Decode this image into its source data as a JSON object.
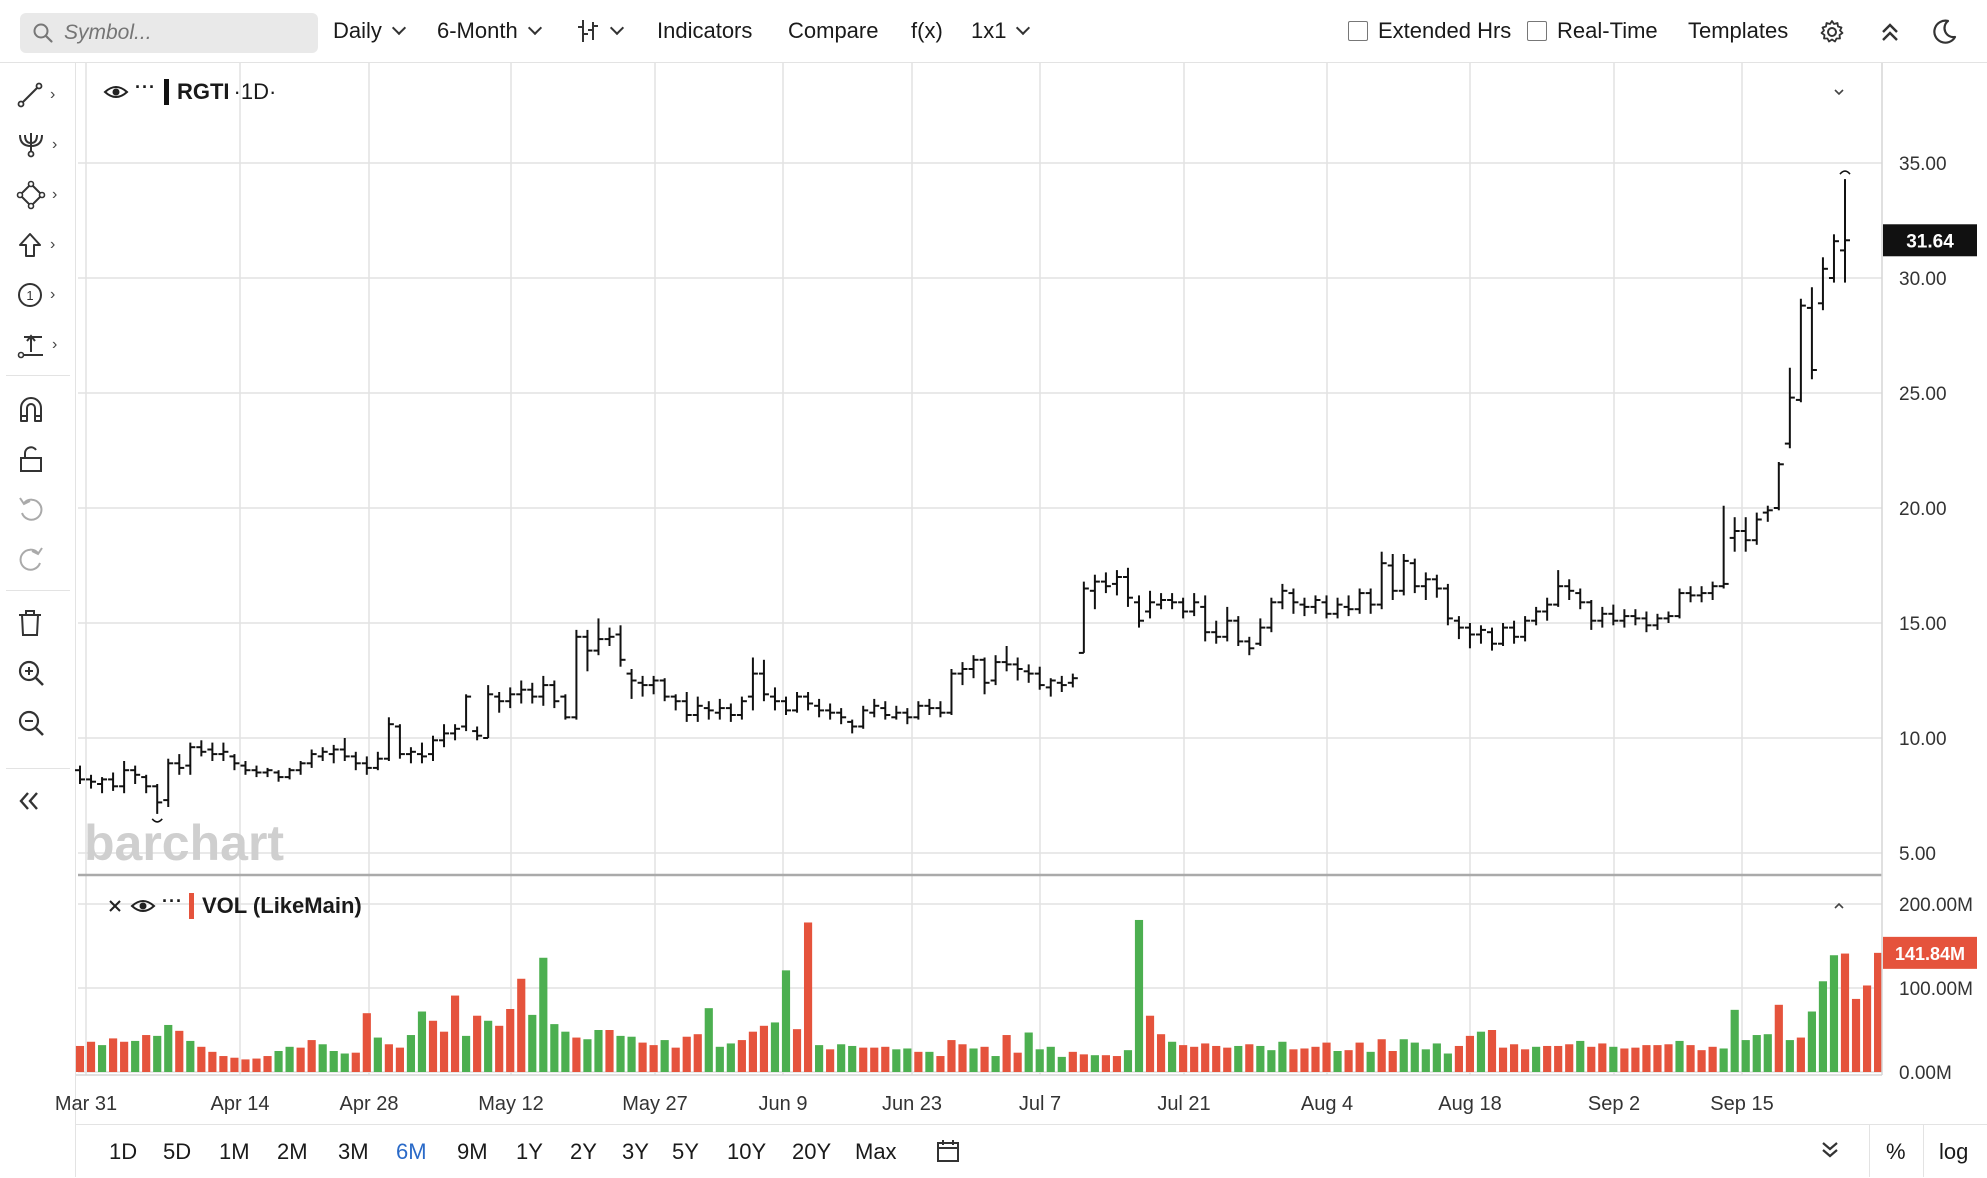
{
  "toolbar": {
    "search_placeholder": "Symbol...",
    "interval": "Daily",
    "period": "6-Month",
    "indicators": "Indicators",
    "compare": "Compare",
    "fx": "f(x)",
    "layout": "1x1",
    "extended_hrs": "Extended Hrs",
    "real_time": "Real-Time",
    "templates": "Templates"
  },
  "legend": {
    "symbol": "RGTI",
    "interval": "·1D·",
    "volume_label": "VOL (LikeMain)"
  },
  "watermark": "barchart",
  "range_buttons": [
    "1D",
    "5D",
    "1M",
    "2M",
    "3M",
    "6M",
    "9M",
    "1Y",
    "2Y",
    "3Y",
    "5Y",
    "10Y",
    "20Y",
    "Max"
  ],
  "active_range": "6M",
  "bottom_right": {
    "percent": "%",
    "log": "log"
  },
  "colors": {
    "up": "#4caf50",
    "down": "#e5533c",
    "price_tag": "#111111",
    "active": "#2a6ac8"
  },
  "chart_data": {
    "type": "ohlc",
    "symbol": "RGTI",
    "x_tick_labels": [
      "Mar 31",
      "Apr 14",
      "Apr 28",
      "May 12",
      "May 27",
      "Jun 9",
      "Jun 23",
      "Jul 7",
      "Jul 21",
      "Aug 4",
      "Aug 18",
      "Sep 2",
      "Sep 15"
    ],
    "y_tick_labels": [
      "5.00",
      "10.00",
      "15.00",
      "20.00",
      "25.00",
      "30.00",
      "35.00"
    ],
    "ylim": [
      5,
      35
    ],
    "last_price": "31.64",
    "ohlc": [
      {
        "o": 8.6,
        "h": 8.8,
        "l": 8.0,
        "c": 8.2
      },
      {
        "o": 8.2,
        "h": 8.4,
        "l": 7.8,
        "c": 8.1
      },
      {
        "o": 8.0,
        "h": 8.3,
        "l": 7.6,
        "c": 8.2
      },
      {
        "o": 8.2,
        "h": 8.5,
        "l": 7.7,
        "c": 7.9
      },
      {
        "o": 7.9,
        "h": 9.0,
        "l": 7.6,
        "c": 8.6
      },
      {
        "o": 8.6,
        "h": 8.8,
        "l": 8.0,
        "c": 8.4
      },
      {
        "o": 8.3,
        "h": 8.4,
        "l": 7.6,
        "c": 7.9
      },
      {
        "o": 7.9,
        "h": 8.0,
        "l": 6.7,
        "c": 7.2
      },
      {
        "o": 7.3,
        "h": 9.1,
        "l": 7.0,
        "c": 8.9
      },
      {
        "o": 8.9,
        "h": 9.3,
        "l": 8.4,
        "c": 8.7
      },
      {
        "o": 8.8,
        "h": 9.8,
        "l": 8.4,
        "c": 9.6
      },
      {
        "o": 9.6,
        "h": 9.9,
        "l": 9.2,
        "c": 9.4
      },
      {
        "o": 9.5,
        "h": 9.8,
        "l": 9.0,
        "c": 9.3
      },
      {
        "o": 9.3,
        "h": 9.8,
        "l": 9.0,
        "c": 9.4
      },
      {
        "o": 9.2,
        "h": 9.3,
        "l": 8.6,
        "c": 8.9
      },
      {
        "o": 8.8,
        "h": 9.0,
        "l": 8.4,
        "c": 8.6
      },
      {
        "o": 8.6,
        "h": 8.8,
        "l": 8.3,
        "c": 8.5
      },
      {
        "o": 8.5,
        "h": 8.7,
        "l": 8.3,
        "c": 8.6
      },
      {
        "o": 8.5,
        "h": 8.6,
        "l": 8.1,
        "c": 8.3
      },
      {
        "o": 8.3,
        "h": 8.7,
        "l": 8.2,
        "c": 8.6
      },
      {
        "o": 8.6,
        "h": 9.0,
        "l": 8.4,
        "c": 8.9
      },
      {
        "o": 8.9,
        "h": 9.5,
        "l": 8.7,
        "c": 9.3
      },
      {
        "o": 9.2,
        "h": 9.6,
        "l": 9.0,
        "c": 9.4
      },
      {
        "o": 9.3,
        "h": 9.7,
        "l": 8.9,
        "c": 9.5
      },
      {
        "o": 9.5,
        "h": 10.0,
        "l": 9.0,
        "c": 9.2
      },
      {
        "o": 9.2,
        "h": 9.4,
        "l": 8.6,
        "c": 8.9
      },
      {
        "o": 8.9,
        "h": 9.2,
        "l": 8.4,
        "c": 8.7
      },
      {
        "o": 8.7,
        "h": 9.4,
        "l": 8.6,
        "c": 9.1
      },
      {
        "o": 9.1,
        "h": 10.9,
        "l": 9.0,
        "c": 10.6
      },
      {
        "o": 10.5,
        "h": 10.6,
        "l": 9.1,
        "c": 9.3
      },
      {
        "o": 9.3,
        "h": 9.6,
        "l": 8.9,
        "c": 9.4
      },
      {
        "o": 9.3,
        "h": 9.8,
        "l": 8.9,
        "c": 9.2
      },
      {
        "o": 9.3,
        "h": 10.1,
        "l": 9.0,
        "c": 9.9
      },
      {
        "o": 9.9,
        "h": 10.6,
        "l": 9.6,
        "c": 10.2
      },
      {
        "o": 10.2,
        "h": 10.6,
        "l": 9.9,
        "c": 10.4
      },
      {
        "o": 10.5,
        "h": 11.9,
        "l": 10.3,
        "c": 11.8
      },
      {
        "o": 10.3,
        "h": 10.5,
        "l": 9.9,
        "c": 10.1
      },
      {
        "o": 10.0,
        "h": 12.3,
        "l": 10.0,
        "c": 11.9
      },
      {
        "o": 11.8,
        "h": 12.0,
        "l": 11.1,
        "c": 11.6
      },
      {
        "o": 11.6,
        "h": 12.2,
        "l": 11.3,
        "c": 11.9
      },
      {
        "o": 11.9,
        "h": 12.5,
        "l": 11.5,
        "c": 12.1
      },
      {
        "o": 12.1,
        "h": 12.4,
        "l": 11.5,
        "c": 11.8
      },
      {
        "o": 11.8,
        "h": 12.7,
        "l": 11.4,
        "c": 12.3
      },
      {
        "o": 12.3,
        "h": 12.5,
        "l": 11.3,
        "c": 11.6
      },
      {
        "o": 11.8,
        "h": 11.9,
        "l": 10.8,
        "c": 10.9
      },
      {
        "o": 10.9,
        "h": 14.7,
        "l": 10.8,
        "c": 14.4
      },
      {
        "o": 14.4,
        "h": 14.7,
        "l": 12.9,
        "c": 13.8
      },
      {
        "o": 13.8,
        "h": 15.2,
        "l": 13.6,
        "c": 14.3
      },
      {
        "o": 14.3,
        "h": 14.8,
        "l": 14.0,
        "c": 14.4
      },
      {
        "o": 14.5,
        "h": 14.9,
        "l": 13.1,
        "c": 13.4
      },
      {
        "o": 12.8,
        "h": 13.0,
        "l": 11.7,
        "c": 12.5
      },
      {
        "o": 12.4,
        "h": 12.7,
        "l": 11.8,
        "c": 12.3
      },
      {
        "o": 12.3,
        "h": 12.7,
        "l": 11.9,
        "c": 12.5
      },
      {
        "o": 12.5,
        "h": 12.6,
        "l": 11.6,
        "c": 11.8
      },
      {
        "o": 11.8,
        "h": 11.9,
        "l": 11.2,
        "c": 11.6
      },
      {
        "o": 11.6,
        "h": 12.0,
        "l": 10.7,
        "c": 11.0
      },
      {
        "o": 11.0,
        "h": 11.8,
        "l": 10.7,
        "c": 11.4
      },
      {
        "o": 11.3,
        "h": 11.6,
        "l": 10.8,
        "c": 11.2
      },
      {
        "o": 11.1,
        "h": 11.7,
        "l": 10.8,
        "c": 11.3
      },
      {
        "o": 11.3,
        "h": 11.5,
        "l": 10.7,
        "c": 11.0
      },
      {
        "o": 11.0,
        "h": 11.8,
        "l": 10.8,
        "c": 11.6
      },
      {
        "o": 11.8,
        "h": 13.5,
        "l": 11.2,
        "c": 12.8
      },
      {
        "o": 12.8,
        "h": 13.4,
        "l": 11.6,
        "c": 11.9
      },
      {
        "o": 11.8,
        "h": 12.2,
        "l": 11.2,
        "c": 11.6
      },
      {
        "o": 11.6,
        "h": 11.8,
        "l": 11.0,
        "c": 11.2
      },
      {
        "o": 11.2,
        "h": 12.0,
        "l": 11.1,
        "c": 11.8
      },
      {
        "o": 11.8,
        "h": 12.0,
        "l": 11.2,
        "c": 11.5
      },
      {
        "o": 11.4,
        "h": 11.7,
        "l": 10.9,
        "c": 11.2
      },
      {
        "o": 11.2,
        "h": 11.5,
        "l": 10.8,
        "c": 11.1
      },
      {
        "o": 11.1,
        "h": 11.3,
        "l": 10.6,
        "c": 10.9
      },
      {
        "o": 10.7,
        "h": 10.8,
        "l": 10.2,
        "c": 10.5
      },
      {
        "o": 10.5,
        "h": 11.4,
        "l": 10.4,
        "c": 11.2
      },
      {
        "o": 11.1,
        "h": 11.7,
        "l": 10.9,
        "c": 11.4
      },
      {
        "o": 11.3,
        "h": 11.6,
        "l": 10.8,
        "c": 11.0
      },
      {
        "o": 10.9,
        "h": 11.4,
        "l": 10.8,
        "c": 11.1
      },
      {
        "o": 11.1,
        "h": 11.3,
        "l": 10.6,
        "c": 10.9
      },
      {
        "o": 10.9,
        "h": 11.6,
        "l": 10.8,
        "c": 11.4
      },
      {
        "o": 11.4,
        "h": 11.7,
        "l": 11.0,
        "c": 11.3
      },
      {
        "o": 11.3,
        "h": 11.6,
        "l": 10.9,
        "c": 11.1
      },
      {
        "o": 11.1,
        "h": 13.0,
        "l": 11.0,
        "c": 12.8
      },
      {
        "o": 12.8,
        "h": 13.3,
        "l": 12.3,
        "c": 13.0
      },
      {
        "o": 13.0,
        "h": 13.6,
        "l": 12.6,
        "c": 13.4
      },
      {
        "o": 13.4,
        "h": 13.5,
        "l": 11.9,
        "c": 12.4
      },
      {
        "o": 12.5,
        "h": 13.6,
        "l": 12.3,
        "c": 13.3
      },
      {
        "o": 13.3,
        "h": 14.0,
        "l": 12.9,
        "c": 13.2
      },
      {
        "o": 13.2,
        "h": 13.5,
        "l": 12.5,
        "c": 13.0
      },
      {
        "o": 12.9,
        "h": 13.2,
        "l": 12.4,
        "c": 12.8
      },
      {
        "o": 12.8,
        "h": 13.1,
        "l": 12.1,
        "c": 12.3
      },
      {
        "o": 12.2,
        "h": 12.6,
        "l": 11.8,
        "c": 12.5
      },
      {
        "o": 12.4,
        "h": 12.7,
        "l": 12.0,
        "c": 12.3
      },
      {
        "o": 12.4,
        "h": 12.8,
        "l": 12.2,
        "c": 12.6
      },
      {
        "o": 13.7,
        "h": 16.8,
        "l": 13.7,
        "c": 16.5
      },
      {
        "o": 16.4,
        "h": 17.1,
        "l": 15.6,
        "c": 16.8
      },
      {
        "o": 16.8,
        "h": 17.2,
        "l": 16.3,
        "c": 16.6
      },
      {
        "o": 16.7,
        "h": 17.3,
        "l": 16.2,
        "c": 17.0
      },
      {
        "o": 17.0,
        "h": 17.4,
        "l": 15.7,
        "c": 16.1
      },
      {
        "o": 15.9,
        "h": 16.2,
        "l": 14.8,
        "c": 15.1
      },
      {
        "o": 15.5,
        "h": 16.4,
        "l": 15.2,
        "c": 15.9
      },
      {
        "o": 15.8,
        "h": 16.3,
        "l": 15.6,
        "c": 16.0
      },
      {
        "o": 16.0,
        "h": 16.3,
        "l": 15.6,
        "c": 15.9
      },
      {
        "o": 15.9,
        "h": 16.1,
        "l": 15.2,
        "c": 15.5
      },
      {
        "o": 15.5,
        "h": 16.3,
        "l": 15.3,
        "c": 15.9
      },
      {
        "o": 15.7,
        "h": 16.2,
        "l": 14.2,
        "c": 14.6
      },
      {
        "o": 14.6,
        "h": 15.1,
        "l": 14.1,
        "c": 14.4
      },
      {
        "o": 14.4,
        "h": 15.7,
        "l": 14.2,
        "c": 15.1
      },
      {
        "o": 15.1,
        "h": 15.3,
        "l": 14.0,
        "c": 14.2
      },
      {
        "o": 14.2,
        "h": 14.4,
        "l": 13.6,
        "c": 13.9
      },
      {
        "o": 14.1,
        "h": 15.2,
        "l": 14.0,
        "c": 14.8
      },
      {
        "o": 14.8,
        "h": 16.1,
        "l": 14.6,
        "c": 15.9
      },
      {
        "o": 15.9,
        "h": 16.7,
        "l": 15.6,
        "c": 16.4
      },
      {
        "o": 16.3,
        "h": 16.5,
        "l": 15.4,
        "c": 15.9
      },
      {
        "o": 15.8,
        "h": 16.1,
        "l": 15.3,
        "c": 15.7
      },
      {
        "o": 15.7,
        "h": 16.2,
        "l": 15.4,
        "c": 16.0
      },
      {
        "o": 15.9,
        "h": 16.2,
        "l": 15.2,
        "c": 15.4
      },
      {
        "o": 15.4,
        "h": 16.1,
        "l": 15.2,
        "c": 15.8
      },
      {
        "o": 15.7,
        "h": 16.2,
        "l": 15.3,
        "c": 15.6
      },
      {
        "o": 15.6,
        "h": 16.5,
        "l": 15.4,
        "c": 16.3
      },
      {
        "o": 16.3,
        "h": 16.5,
        "l": 15.4,
        "c": 15.8
      },
      {
        "o": 15.8,
        "h": 18.1,
        "l": 15.6,
        "c": 17.6
      },
      {
        "o": 17.5,
        "h": 18.0,
        "l": 16.0,
        "c": 16.4
      },
      {
        "o": 16.4,
        "h": 18.0,
        "l": 16.2,
        "c": 17.7
      },
      {
        "o": 17.6,
        "h": 17.8,
        "l": 16.3,
        "c": 16.6
      },
      {
        "o": 16.6,
        "h": 17.2,
        "l": 16.0,
        "c": 16.9
      },
      {
        "o": 16.9,
        "h": 17.1,
        "l": 16.1,
        "c": 16.5
      },
      {
        "o": 16.5,
        "h": 16.7,
        "l": 14.9,
        "c": 15.2
      },
      {
        "o": 15.1,
        "h": 15.3,
        "l": 14.3,
        "c": 14.8
      },
      {
        "o": 14.8,
        "h": 15.0,
        "l": 13.9,
        "c": 14.5
      },
      {
        "o": 14.5,
        "h": 14.9,
        "l": 14.1,
        "c": 14.7
      },
      {
        "o": 14.6,
        "h": 14.8,
        "l": 13.8,
        "c": 14.1
      },
      {
        "o": 14.1,
        "h": 15.0,
        "l": 14.0,
        "c": 14.8
      },
      {
        "o": 14.8,
        "h": 15.1,
        "l": 14.1,
        "c": 14.4
      },
      {
        "o": 14.4,
        "h": 15.3,
        "l": 14.2,
        "c": 15.1
      },
      {
        "o": 15.1,
        "h": 15.7,
        "l": 14.9,
        "c": 15.5
      },
      {
        "o": 15.5,
        "h": 16.1,
        "l": 15.1,
        "c": 15.8
      },
      {
        "o": 15.8,
        "h": 17.3,
        "l": 15.7,
        "c": 16.6
      },
      {
        "o": 16.6,
        "h": 16.9,
        "l": 16.0,
        "c": 16.4
      },
      {
        "o": 16.3,
        "h": 16.5,
        "l": 15.6,
        "c": 15.9
      },
      {
        "o": 15.9,
        "h": 16.0,
        "l": 14.7,
        "c": 15.1
      },
      {
        "o": 15.1,
        "h": 15.7,
        "l": 14.8,
        "c": 15.4
      },
      {
        "o": 15.4,
        "h": 15.8,
        "l": 14.9,
        "c": 15.1
      },
      {
        "o": 15.1,
        "h": 15.6,
        "l": 14.8,
        "c": 15.3
      },
      {
        "o": 15.3,
        "h": 15.6,
        "l": 14.9,
        "c": 15.2
      },
      {
        "o": 15.2,
        "h": 15.5,
        "l": 14.6,
        "c": 14.9
      },
      {
        "o": 14.9,
        "h": 15.4,
        "l": 14.7,
        "c": 15.2
      },
      {
        "o": 15.2,
        "h": 15.5,
        "l": 15.0,
        "c": 15.3
      },
      {
        "o": 15.3,
        "h": 16.5,
        "l": 15.2,
        "c": 16.3
      },
      {
        "o": 16.3,
        "h": 16.6,
        "l": 15.9,
        "c": 16.2
      },
      {
        "o": 16.2,
        "h": 16.6,
        "l": 15.9,
        "c": 16.3
      },
      {
        "o": 16.3,
        "h": 16.8,
        "l": 16.0,
        "c": 16.6
      },
      {
        "o": 16.6,
        "h": 20.1,
        "l": 16.5,
        "c": 16.7
      },
      {
        "o": 18.7,
        "h": 19.6,
        "l": 18.1,
        "c": 19.0
      },
      {
        "o": 19.0,
        "h": 19.6,
        "l": 18.1,
        "c": 18.6
      },
      {
        "o": 18.6,
        "h": 19.8,
        "l": 18.4,
        "c": 19.5
      },
      {
        "o": 19.8,
        "h": 20.1,
        "l": 19.4,
        "c": 19.9
      },
      {
        "o": 20.0,
        "h": 22.0,
        "l": 19.9,
        "c": 21.9
      },
      {
        "o": 22.8,
        "h": 26.1,
        "l": 22.6,
        "c": 24.8
      },
      {
        "o": 24.7,
        "h": 29.1,
        "l": 24.6,
        "c": 28.8
      },
      {
        "o": 28.7,
        "h": 29.6,
        "l": 25.6,
        "c": 26.0
      },
      {
        "o": 28.9,
        "h": 30.9,
        "l": 28.6,
        "c": 30.4
      },
      {
        "o": 30.0,
        "h": 31.9,
        "l": 29.8,
        "c": 31.6
      },
      {
        "o": 31.2,
        "h": 34.3,
        "l": 29.8,
        "c": 31.64
      }
    ],
    "volume": {
      "y_tick_labels": [
        "0.00M",
        "100.00M",
        "200.00M"
      ],
      "ylim_millions": [
        0,
        200
      ],
      "last_value": "141.84M",
      "values_millions": [
        31,
        36,
        32,
        40,
        36,
        37,
        44,
        43,
        56,
        49,
        37,
        30,
        24,
        19,
        17,
        15,
        16,
        19,
        25,
        30,
        29,
        38,
        33,
        25,
        22,
        23,
        70,
        41,
        33,
        29,
        44,
        72,
        61,
        48,
        91,
        43,
        67,
        61,
        55,
        75,
        111,
        68,
        136,
        57,
        48,
        41,
        39,
        50,
        50,
        43,
        42,
        35,
        32,
        38,
        29,
        42,
        45,
        76,
        30,
        34,
        38,
        48,
        55,
        59,
        121,
        51,
        178,
        32,
        27,
        33,
        31,
        29,
        29,
        30,
        27,
        28,
        24,
        24,
        19,
        38,
        33,
        28,
        30,
        19,
        44,
        23,
        47,
        27,
        30,
        18,
        24,
        21,
        20,
        20,
        19,
        26,
        181,
        67,
        45,
        36,
        32,
        30,
        34,
        31,
        29,
        31,
        33,
        31,
        26,
        36,
        27,
        28,
        30,
        35,
        25,
        26,
        35,
        24,
        39,
        25,
        39,
        35,
        27,
        34,
        22,
        31,
        43,
        48,
        50,
        29,
        33,
        27,
        30,
        31,
        31,
        33,
        37,
        30,
        34,
        30,
        28,
        29,
        32,
        32,
        33,
        37,
        32,
        26,
        30,
        28,
        74,
        38,
        44,
        45,
        80,
        38,
        41,
        72,
        108,
        139,
        141,
        87,
        103,
        141.84
      ],
      "up_down": "ddudduduududdddddduudduuuddudduudddududdduuuuduuduudduddduuuddduudduduuddduududddududduuuuddudduudduddddduduuudddduddudduuuuudduddddudddudduddddduddduuuuududuuud"
    }
  }
}
